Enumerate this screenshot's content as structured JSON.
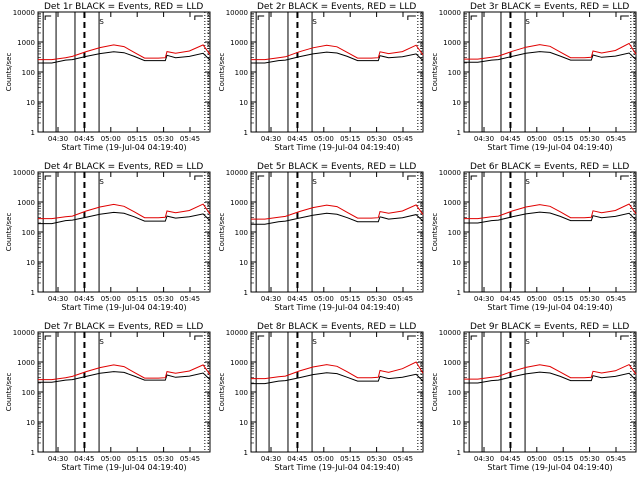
{
  "colors": {
    "events": "#000000",
    "lld": "#e00000",
    "axes": "#000000",
    "background": "#ffffff"
  },
  "chart_data": [
    {
      "type": "line",
      "title": "Det 1r BLACK = Events, RED = LLD",
      "xlabel": "Start Time (19-Jul-04 04:19:40)",
      "ylabel": "Counts/sec",
      "yscale": "log",
      "ylim": [
        1,
        10000
      ],
      "ytick_labels": [
        "1",
        "10",
        "100",
        "1000",
        "10000"
      ],
      "xtick_labels": [
        "04:30",
        "04:45",
        "05:00",
        "05:15",
        "05:30",
        "05:45"
      ],
      "xlim": [
        0,
        100
      ],
      "annotations": [
        {
          "text": "S",
          "x": 37
        }
      ],
      "events_x": [
        0,
        8,
        16,
        20,
        28,
        36,
        44,
        50,
        56,
        62,
        70,
        74,
        75,
        80,
        88,
        96,
        100
      ],
      "events_y": [
        200,
        200,
        250,
        260,
        330,
        410,
        470,
        440,
        330,
        240,
        240,
        240,
        360,
        300,
        330,
        420,
        250
      ],
      "lld_x": [
        0,
        8,
        16,
        20,
        28,
        36,
        44,
        50,
        56,
        62,
        70,
        74,
        75,
        80,
        88,
        96,
        100
      ],
      "lld_y": [
        260,
        260,
        300,
        330,
        480,
        650,
        800,
        700,
        450,
        290,
        290,
        300,
        480,
        420,
        500,
        800,
        380
      ]
    },
    {
      "type": "line",
      "title": "Det 2r BLACK = Events, RED = LLD",
      "xlabel": "Start Time (19-Jul-04 04:19:40)",
      "ylabel": "Counts/sec",
      "yscale": "log",
      "ylim": [
        1,
        10000
      ],
      "ytick_labels": [
        "1",
        "10",
        "100",
        "1000",
        "10000"
      ],
      "xtick_labels": [
        "04:30",
        "04:45",
        "05:00",
        "05:15",
        "05:30",
        "05:45"
      ],
      "xlim": [
        0,
        100
      ],
      "annotations": [
        {
          "text": "S",
          "x": 37
        }
      ],
      "events_x": [
        0,
        8,
        16,
        20,
        28,
        36,
        44,
        50,
        56,
        62,
        70,
        74,
        75,
        80,
        88,
        96,
        100
      ],
      "events_y": [
        200,
        200,
        240,
        250,
        320,
        400,
        460,
        430,
        330,
        240,
        240,
        240,
        350,
        300,
        320,
        400,
        240
      ],
      "lld_x": [
        0,
        8,
        16,
        20,
        28,
        36,
        44,
        50,
        56,
        62,
        70,
        74,
        75,
        80,
        88,
        96,
        100
      ],
      "lld_y": [
        260,
        260,
        300,
        320,
        470,
        640,
        780,
        690,
        450,
        290,
        290,
        300,
        470,
        410,
        480,
        780,
        370
      ]
    },
    {
      "type": "line",
      "title": "Det 3r BLACK = Events, RED = LLD",
      "xlabel": "Start Time (19-Jul-04 04:19:40)",
      "ylabel": "Counts/sec",
      "yscale": "log",
      "ylim": [
        1,
        10000
      ],
      "ytick_labels": [
        "1",
        "10",
        "100",
        "1000",
        "10000"
      ],
      "xtick_labels": [
        "04:30",
        "04:45",
        "05:00",
        "05:15",
        "05:30",
        "05:45"
      ],
      "xlim": [
        0,
        100
      ],
      "annotations": [
        {
          "text": "S",
          "x": 37
        }
      ],
      "events_x": [
        0,
        8,
        16,
        20,
        28,
        36,
        44,
        50,
        56,
        62,
        70,
        74,
        75,
        80,
        88,
        96,
        100
      ],
      "events_y": [
        210,
        210,
        250,
        260,
        330,
        420,
        480,
        450,
        340,
        250,
        250,
        250,
        370,
        310,
        340,
        430,
        260
      ],
      "lld_x": [
        0,
        8,
        16,
        20,
        28,
        36,
        44,
        50,
        56,
        62,
        70,
        74,
        75,
        80,
        88,
        96,
        100
      ],
      "lld_y": [
        270,
        270,
        310,
        340,
        490,
        670,
        820,
        720,
        460,
        300,
        300,
        310,
        500,
        430,
        520,
        900,
        390
      ]
    },
    {
      "type": "line",
      "title": "Det 4r BLACK = Events, RED = LLD",
      "xlabel": "Start Time (19-Jul-04 04:19:40)",
      "ylabel": "Counts/sec",
      "yscale": "log",
      "ylim": [
        1,
        10000
      ],
      "ytick_labels": [
        "1",
        "10",
        "100",
        "1000",
        "10000"
      ],
      "xtick_labels": [
        "04:30",
        "04:45",
        "05:00",
        "05:15",
        "05:30",
        "05:45"
      ],
      "xlim": [
        0,
        100
      ],
      "annotations": [
        {
          "text": "S",
          "x": 37
        }
      ],
      "events_x": [
        0,
        8,
        16,
        20,
        28,
        36,
        44,
        50,
        56,
        62,
        70,
        74,
        75,
        80,
        88,
        96,
        100
      ],
      "events_y": [
        190,
        190,
        240,
        250,
        310,
        390,
        450,
        420,
        320,
        230,
        230,
        230,
        340,
        290,
        320,
        400,
        240
      ],
      "lld_x": [
        0,
        8,
        16,
        20,
        28,
        36,
        44,
        50,
        56,
        62,
        70,
        74,
        75,
        80,
        88,
        96,
        100
      ],
      "lld_y": [
        280,
        280,
        320,
        340,
        500,
        680,
        830,
        720,
        470,
        300,
        300,
        310,
        500,
        440,
        520,
        850,
        400
      ]
    },
    {
      "type": "line",
      "title": "Det 5r BLACK = Events, RED = LLD",
      "xlabel": "Start Time (19-Jul-04 04:19:40)",
      "ylabel": "Counts/sec",
      "yscale": "log",
      "ylim": [
        1,
        10000
      ],
      "ytick_labels": [
        "1",
        "10",
        "100",
        "1000",
        "10000"
      ],
      "xtick_labels": [
        "04:30",
        "04:45",
        "05:00",
        "05:15",
        "05:30",
        "05:45"
      ],
      "xlim": [
        0,
        100
      ],
      "annotations": [
        {
          "text": "S",
          "x": 37
        }
      ],
      "events_x": [
        0,
        8,
        16,
        20,
        28,
        36,
        44,
        50,
        56,
        62,
        70,
        74,
        75,
        80,
        88,
        96,
        100
      ],
      "events_y": [
        180,
        180,
        220,
        230,
        290,
        360,
        420,
        390,
        300,
        220,
        220,
        220,
        320,
        270,
        300,
        380,
        230
      ],
      "lld_x": [
        0,
        8,
        16,
        20,
        28,
        36,
        44,
        50,
        56,
        62,
        70,
        74,
        75,
        80,
        88,
        96,
        100
      ],
      "lld_y": [
        270,
        270,
        310,
        330,
        480,
        650,
        790,
        700,
        450,
        290,
        290,
        300,
        480,
        420,
        500,
        800,
        380
      ]
    },
    {
      "type": "line",
      "title": "Det 6r BLACK = Events, RED = LLD",
      "xlabel": "Start Time (19-Jul-04 04:19:40)",
      "ylabel": "Counts/sec",
      "yscale": "log",
      "ylim": [
        1,
        10000
      ],
      "ytick_labels": [
        "1",
        "10",
        "100",
        "1000",
        "10000"
      ],
      "xtick_labels": [
        "04:30",
        "04:45",
        "05:00",
        "05:15",
        "05:30",
        "05:45"
      ],
      "xlim": [
        0,
        100
      ],
      "annotations": [
        {
          "text": "S",
          "x": 37
        }
      ],
      "events_x": [
        0,
        8,
        16,
        20,
        28,
        36,
        44,
        50,
        56,
        62,
        70,
        74,
        75,
        80,
        88,
        96,
        100
      ],
      "events_y": [
        200,
        200,
        240,
        250,
        320,
        400,
        460,
        430,
        330,
        240,
        240,
        240,
        350,
        300,
        330,
        420,
        250
      ],
      "lld_x": [
        0,
        8,
        16,
        20,
        28,
        36,
        44,
        50,
        56,
        62,
        70,
        74,
        75,
        80,
        88,
        96,
        100
      ],
      "lld_y": [
        280,
        280,
        320,
        340,
        500,
        680,
        820,
        720,
        470,
        300,
        300,
        310,
        510,
        440,
        520,
        860,
        400
      ]
    },
    {
      "type": "line",
      "title": "Det 7r BLACK = Events, RED = LLD",
      "xlabel": "Start Time (19-Jul-04 04:19:40)",
      "ylabel": "Counts/sec",
      "yscale": "log",
      "ylim": [
        1,
        10000
      ],
      "ytick_labels": [
        "1",
        "10",
        "100",
        "1000",
        "10000"
      ],
      "xtick_labels": [
        "04:30",
        "04:45",
        "05:00",
        "05:15",
        "05:30",
        "05:45"
      ],
      "xlim": [
        0,
        100
      ],
      "annotations": [
        {
          "text": "S",
          "x": 37
        }
      ],
      "events_x": [
        0,
        8,
        16,
        20,
        28,
        36,
        44,
        50,
        56,
        62,
        70,
        74,
        75,
        80,
        88,
        96,
        100
      ],
      "events_y": [
        210,
        210,
        250,
        260,
        330,
        420,
        480,
        450,
        340,
        250,
        250,
        250,
        370,
        310,
        340,
        430,
        260
      ],
      "lld_x": [
        0,
        8,
        16,
        20,
        28,
        36,
        44,
        50,
        56,
        62,
        70,
        74,
        75,
        80,
        88,
        96,
        100
      ],
      "lld_y": [
        260,
        260,
        300,
        330,
        480,
        650,
        800,
        700,
        450,
        290,
        290,
        300,
        480,
        420,
        500,
        800,
        380
      ]
    },
    {
      "type": "line",
      "title": "Det 8r BLACK = Events, RED = LLD",
      "xlabel": "Start Time (19-Jul-04 04:19:40)",
      "ylabel": "Counts/sec",
      "yscale": "log",
      "ylim": [
        1,
        10000
      ],
      "ytick_labels": [
        "1",
        "10",
        "100",
        "1000",
        "10000"
      ],
      "xtick_labels": [
        "04:30",
        "04:45",
        "05:00",
        "05:15",
        "05:30",
        "05:45"
      ],
      "xlim": [
        0,
        100
      ],
      "annotations": [
        {
          "text": "S",
          "x": 37
        }
      ],
      "events_x": [
        0,
        8,
        16,
        20,
        28,
        36,
        44,
        50,
        56,
        62,
        70,
        74,
        75,
        80,
        88,
        96,
        100
      ],
      "events_y": [
        190,
        190,
        230,
        240,
        300,
        380,
        440,
        410,
        310,
        230,
        230,
        230,
        330,
        280,
        310,
        390,
        230
      ],
      "lld_x": [
        0,
        8,
        16,
        20,
        28,
        36,
        44,
        50,
        56,
        62,
        70,
        74,
        75,
        80,
        88,
        96,
        100
      ],
      "lld_y": [
        280,
        280,
        320,
        340,
        500,
        680,
        820,
        720,
        470,
        300,
        300,
        310,
        520,
        450,
        600,
        1000,
        420
      ]
    },
    {
      "type": "line",
      "title": "Det 9r BLACK = Events, RED = LLD",
      "xlabel": "Start Time (19-Jul-04 04:19:40)",
      "ylabel": "Counts/sec",
      "yscale": "log",
      "ylim": [
        1,
        10000
      ],
      "ytick_labels": [
        "1",
        "10",
        "100",
        "1000",
        "10000"
      ],
      "xtick_labels": [
        "04:30",
        "04:45",
        "05:00",
        "05:15",
        "05:30",
        "05:45"
      ],
      "xlim": [
        0,
        100
      ],
      "annotations": [
        {
          "text": "S",
          "x": 37
        }
      ],
      "events_x": [
        0,
        8,
        16,
        20,
        28,
        36,
        44,
        50,
        56,
        62,
        70,
        74,
        75,
        80,
        88,
        96,
        100
      ],
      "events_y": [
        200,
        200,
        240,
        250,
        320,
        400,
        460,
        430,
        330,
        240,
        240,
        240,
        350,
        300,
        330,
        420,
        250
      ],
      "lld_x": [
        0,
        8,
        16,
        20,
        28,
        36,
        44,
        50,
        56,
        62,
        70,
        74,
        75,
        80,
        88,
        96,
        100
      ],
      "lld_y": [
        270,
        270,
        310,
        330,
        490,
        660,
        810,
        710,
        460,
        300,
        300,
        310,
        490,
        430,
        510,
        820,
        390
      ]
    }
  ]
}
